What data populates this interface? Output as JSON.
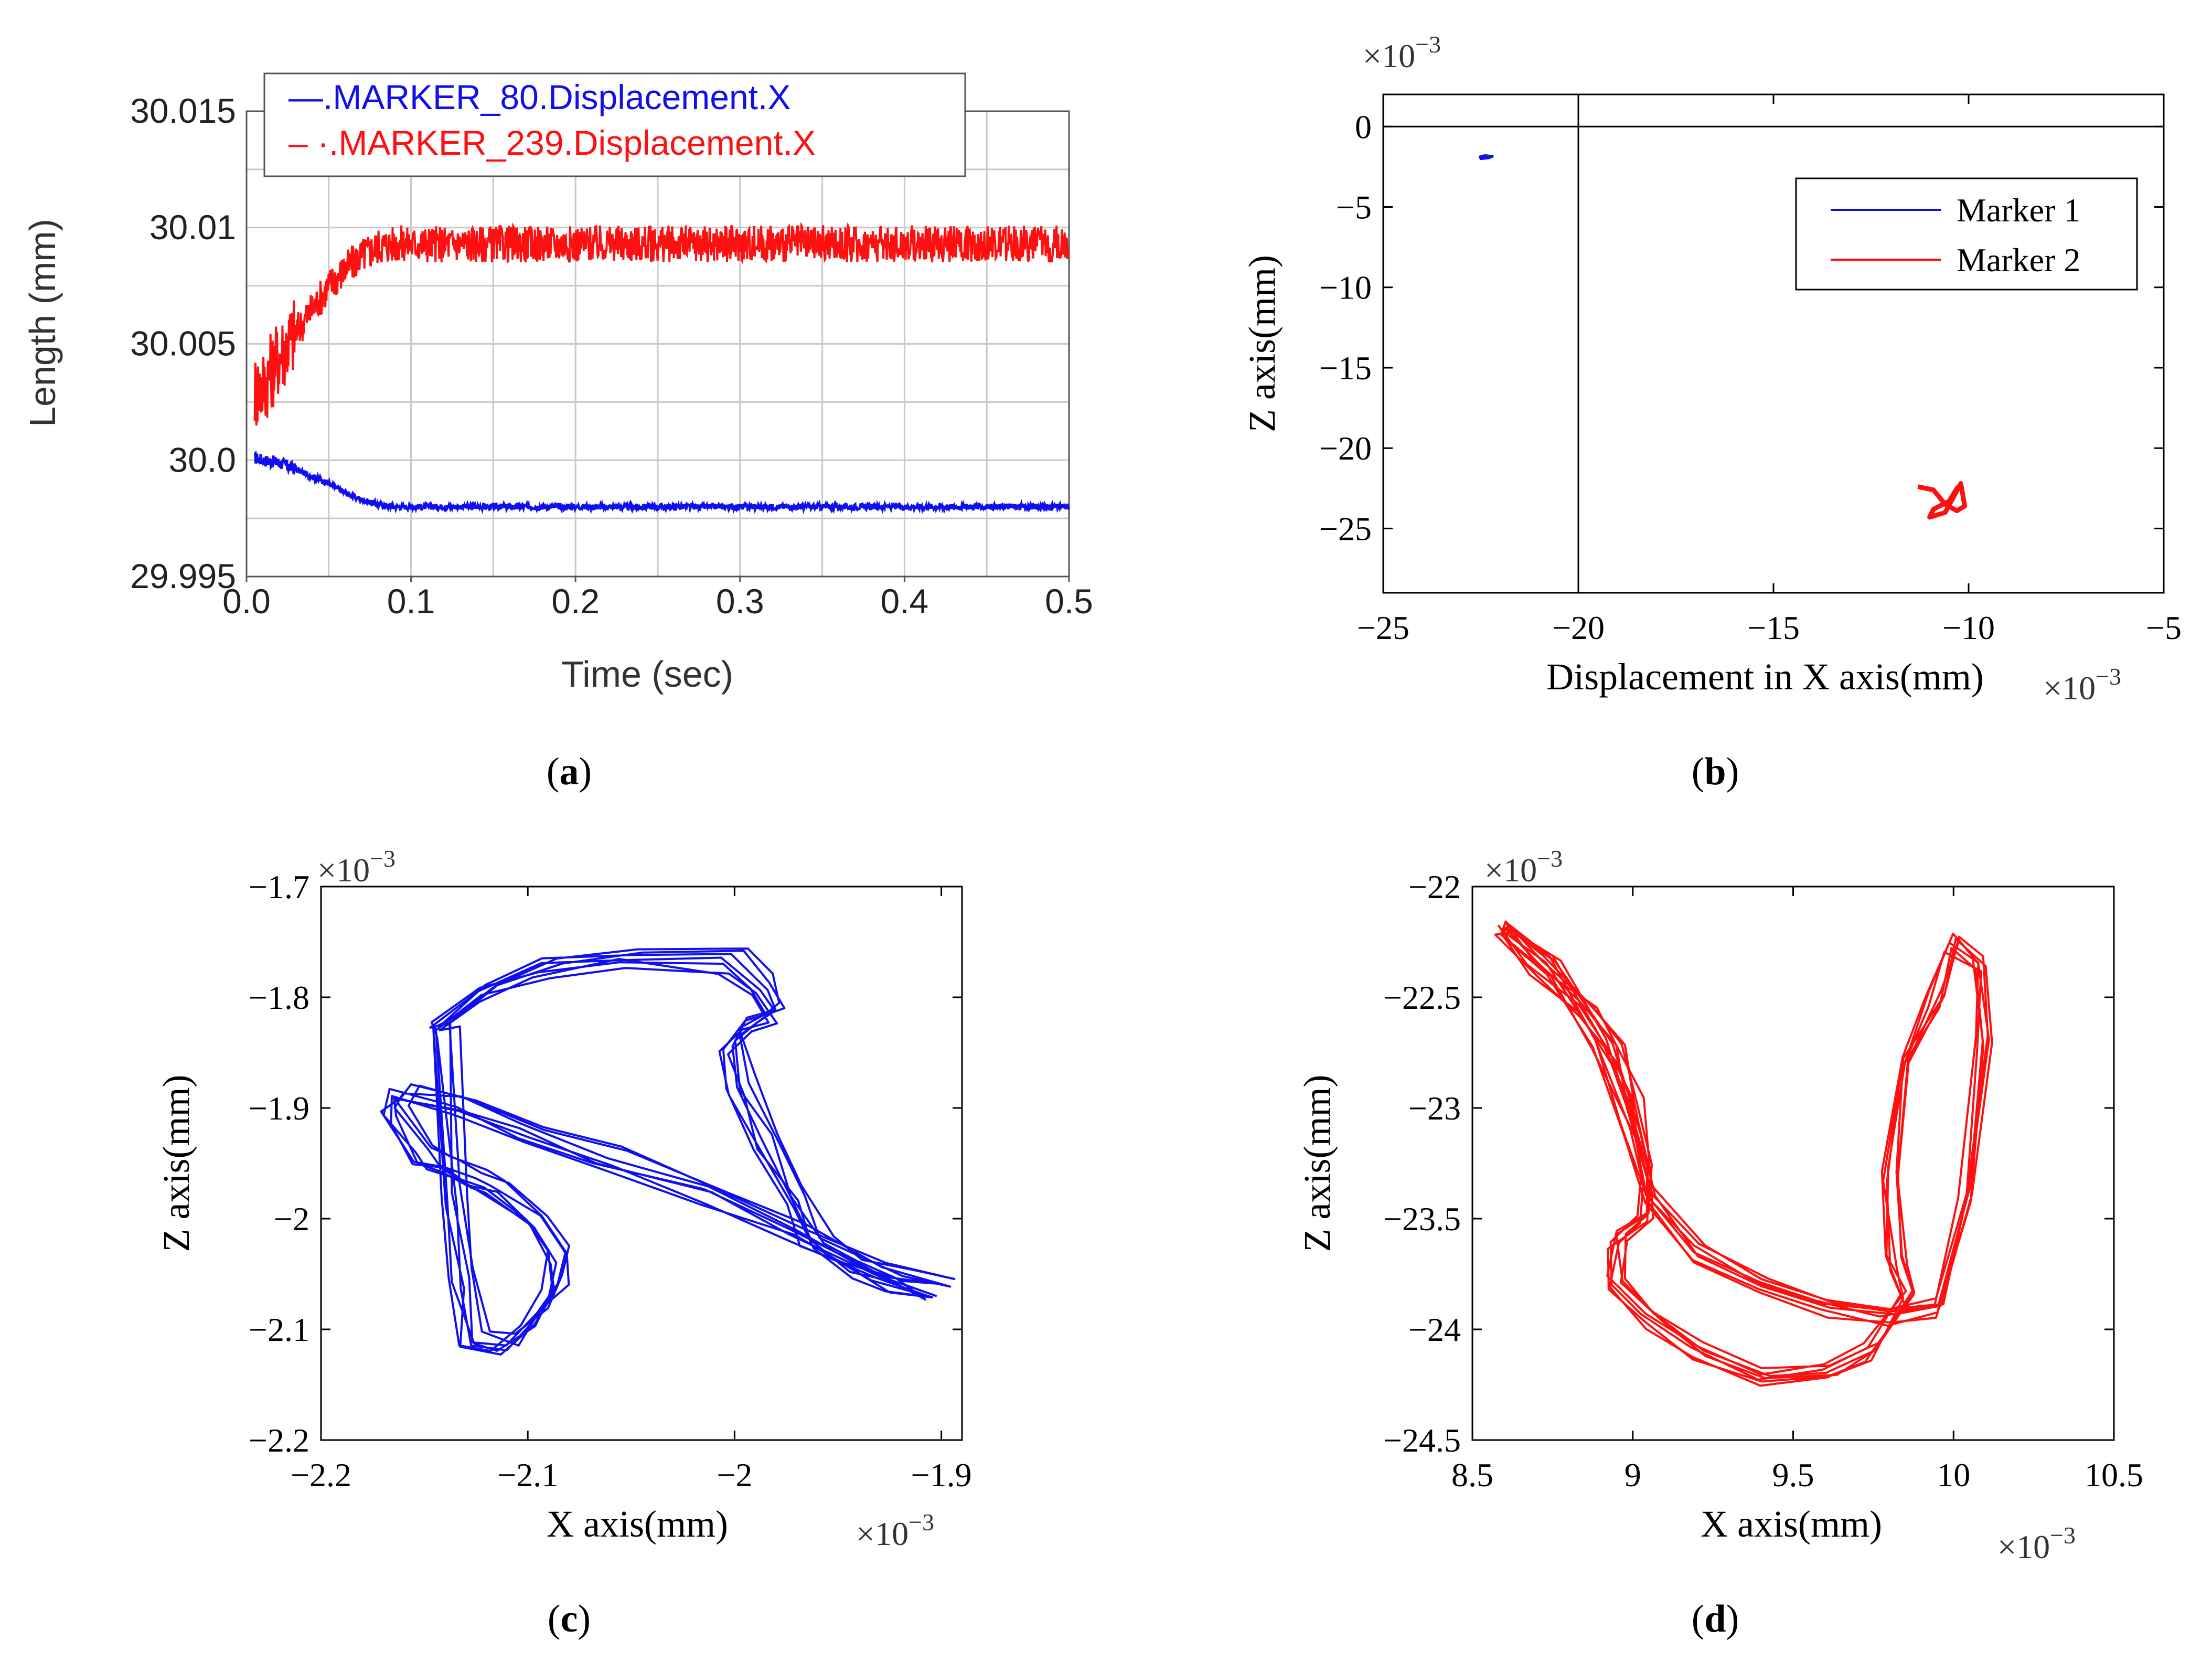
{
  "colors": {
    "blue": "#1010ee",
    "red": "#ff1010",
    "axis": "#000000",
    "grid": "#c8c8c8"
  },
  "chart_data": [
    {
      "panel": "a",
      "caption": "(a)",
      "caption_letter": "a",
      "type": "line",
      "xlabel": "Time (sec)",
      "ylabel": "Length (mm)",
      "xlim": [
        0,
        0.5
      ],
      "ylim": [
        29.995,
        30.015
      ],
      "xticks": [
        0,
        0.1,
        0.2,
        0.3,
        0.4,
        0.5
      ],
      "xtick_labels": [
        "0.0",
        "0.1",
        "0.2",
        "0.3",
        "0.4",
        "0.5"
      ],
      "yticks": [
        29.995,
        30.0,
        30.005,
        30.01,
        30.015
      ],
      "ytick_labels": [
        "29.995",
        "30.0",
        "30.005",
        "30.01",
        "30.015"
      ],
      "grid": true,
      "legend": [
        "—.MARKER_80.Displacement.X",
        "‒ ·.MARKER_239.Displacement.X"
      ],
      "legend_position": "top",
      "series": [
        {
          "name": ".MARKER_80.Displacement.X",
          "color": "#1010ee",
          "x": [
            0.005,
            0.01,
            0.02,
            0.03,
            0.04,
            0.05,
            0.06,
            0.07,
            0.08,
            0.09,
            0.1,
            0.2,
            0.3,
            0.4,
            0.5
          ],
          "y": [
            30.0001,
            30.0,
            29.9999,
            29.9996,
            29.9993,
            29.999,
            29.9986,
            29.9983,
            29.9981,
            29.998,
            29.998,
            29.998,
            29.998,
            29.998,
            29.998
          ],
          "noise": 0.00012
        },
        {
          "name": ".MARKER_239.Displacement.X",
          "color": "#ff1010",
          "x": [
            0.005,
            0.01,
            0.02,
            0.03,
            0.04,
            0.05,
            0.06,
            0.07,
            0.08,
            0.09,
            0.1,
            0.2,
            0.3,
            0.4,
            0.5
          ],
          "y": [
            30.003,
            30.0032,
            30.0045,
            30.0055,
            30.0065,
            30.0075,
            30.0082,
            30.0088,
            30.0092,
            30.0093,
            30.0093,
            30.0093,
            30.0093,
            30.0093,
            30.0093
          ],
          "noise": 0.0008
        }
      ]
    },
    {
      "panel": "b",
      "caption": "(b)",
      "caption_letter": "b",
      "type": "line",
      "xlabel": "Displacement in X axis(mm)",
      "ylabel": "Z axis(mm)",
      "multiplier": "×10",
      "multiplier_exp": "−3",
      "xlim": [
        -25,
        -5
      ],
      "ylim": [
        -29,
        2
      ],
      "xticks": [
        -25,
        -20,
        -15,
        -10,
        -5
      ],
      "xtick_labels": [
        "−25",
        "−20",
        "−15",
        "−10",
        "−5"
      ],
      "yticks": [
        0,
        -5,
        -10,
        -15,
        -20,
        -25
      ],
      "ytick_labels": [
        "0",
        "−5",
        "−10",
        "−15",
        "−20",
        "−25"
      ],
      "zero_lines": {
        "x": -20,
        "y": 0
      },
      "legend": [
        "Marker 1",
        "Marker 2"
      ],
      "legend_position": "top-right",
      "series": [
        {
          "name": "Marker 1",
          "color": "#1010ee",
          "x": [
            -22.55,
            -22.4,
            -22.2,
            -22.3,
            -22.5,
            -22.45
          ],
          "y": [
            -1.9,
            -1.8,
            -1.85,
            -1.95,
            -2.0,
            -1.85
          ]
        },
        {
          "name": "Marker 2",
          "color": "#ff1010",
          "x": [
            -11.3,
            -10.9,
            -10.6,
            -10.3,
            -10.1,
            -10.2,
            -10.6,
            -11.0,
            -10.9,
            -10.5,
            -10.3,
            -10.2
          ],
          "y": [
            -22.4,
            -22.6,
            -23.5,
            -23.9,
            -23.6,
            -22.2,
            -24.0,
            -24.3,
            -23.8,
            -23.3,
            -22.5,
            -22.3
          ]
        }
      ]
    },
    {
      "panel": "c",
      "caption": "(c)",
      "caption_letter": "c",
      "type": "line",
      "xlabel": "X axis(mm)",
      "ylabel": "Z axis(mm)",
      "multiplier": "×10",
      "multiplier_exp": "−3",
      "xlim": [
        -2.2,
        -1.89
      ],
      "ylim": [
        -2.2,
        -1.7
      ],
      "xticks": [
        -2.2,
        -2.1,
        -2.0,
        -1.9
      ],
      "xtick_labels": [
        "−2.2",
        "−2.1",
        "−2",
        "−1.9"
      ],
      "yticks": [
        -1.7,
        -1.8,
        -1.9,
        -2.0,
        -2.1,
        -2.2
      ],
      "ytick_labels": [
        "−1.7",
        "−1.8",
        "−1.9",
        "−2",
        "−2.1",
        "−2.2"
      ],
      "series": [
        {
          "name": "Marker 1 trajectory",
          "color": "#1010ee",
          "loops": 7,
          "x": [
            -2.14,
            -2.12,
            -2.09,
            -2.05,
            -2.0,
            -1.985,
            -1.98,
            -1.99,
            -2.0,
            -1.995,
            -1.985,
            -1.97,
            -1.96,
            -1.94,
            -1.92,
            -1.9,
            -1.93,
            -1.97,
            -2.01,
            -2.06,
            -2.1,
            -2.13,
            -2.16,
            -2.165,
            -2.15,
            -2.14,
            -2.125,
            -2.115,
            -2.095,
            -2.085,
            -2.085,
            -2.095,
            -2.11,
            -2.125,
            -2.13,
            -2.135,
            -2.14
          ],
          "y": [
            -1.825,
            -1.79,
            -1.77,
            -1.762,
            -1.765,
            -1.79,
            -1.81,
            -1.82,
            -1.84,
            -1.88,
            -1.93,
            -1.98,
            -2.02,
            -2.04,
            -2.055,
            -2.065,
            -2.05,
            -2.01,
            -1.975,
            -1.945,
            -1.92,
            -1.895,
            -1.885,
            -1.9,
            -1.94,
            -1.95,
            -1.96,
            -1.97,
            -2.0,
            -2.03,
            -2.06,
            -2.09,
            -2.115,
            -2.11,
            -2.05,
            -1.98,
            -1.825
          ]
        }
      ]
    },
    {
      "panel": "d",
      "caption": "(d)",
      "caption_letter": "d",
      "type": "line",
      "xlabel": "X axis(mm)",
      "ylabel": "Z axis(mm)",
      "multiplier": "×10",
      "multiplier_exp": "−3",
      "xlim": [
        8.5,
        10.5
      ],
      "ylim": [
        -24.5,
        -22
      ],
      "xticks": [
        8.5,
        9,
        9.5,
        10,
        10.5
      ],
      "xtick_labels": [
        "8.5",
        "9",
        "9.5",
        "10",
        "10.5"
      ],
      "yticks": [
        -22,
        -22.5,
        -23,
        -23.5,
        -24,
        -24.5
      ],
      "ytick_labels": [
        "−22",
        "−22.5",
        "−23",
        "−23.5",
        "−24",
        "−24.5"
      ],
      "series": [
        {
          "name": "Marker 2 trajectory",
          "color": "#ff1010",
          "loops": 7,
          "x": [
            8.6,
            8.75,
            8.9,
            9.0,
            9.05,
            9.2,
            9.4,
            9.6,
            9.8,
            9.95,
            10.05,
            10.1,
            10.08,
            10.0,
            9.95,
            9.85,
            9.8,
            9.82,
            9.85,
            9.75,
            9.6,
            9.4,
            9.2,
            9.05,
            8.95,
            8.95,
            9.05,
            9.05,
            9.0,
            8.95,
            8.85,
            8.7,
            8.6
          ],
          "y": [
            -22.2,
            -22.35,
            -22.7,
            -23.1,
            -23.4,
            -23.65,
            -23.8,
            -23.9,
            -23.95,
            -23.9,
            -23.4,
            -22.7,
            -22.35,
            -22.25,
            -22.5,
            -22.8,
            -23.3,
            -23.7,
            -23.85,
            -24.1,
            -24.2,
            -24.22,
            -24.1,
            -23.95,
            -23.8,
            -23.6,
            -23.5,
            -23.3,
            -22.95,
            -22.75,
            -22.55,
            -22.35,
            -22.2
          ]
        }
      ]
    }
  ]
}
